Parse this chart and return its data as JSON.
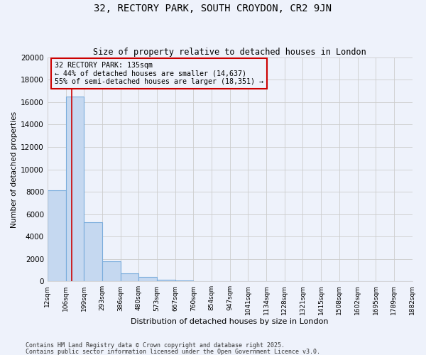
{
  "title": "32, RECTORY PARK, SOUTH CROYDON, CR2 9JN",
  "subtitle": "Size of property relative to detached houses in London",
  "xlabel": "Distribution of detached houses by size in London",
  "ylabel": "Number of detached properties",
  "property_size": 135,
  "annotation_line1": "32 RECTORY PARK: 135sqm",
  "annotation_line2": "← 44% of detached houses are smaller (14,637)",
  "annotation_line3": "55% of semi-detached houses are larger (18,351) →",
  "footnote1": "Contains HM Land Registry data © Crown copyright and database right 2025.",
  "footnote2": "Contains public sector information licensed under the Open Government Licence v3.0.",
  "bin_edges": [
    12,
    106,
    199,
    293,
    386,
    480,
    573,
    667,
    760,
    854,
    947,
    1041,
    1134,
    1228,
    1321,
    1415,
    1508,
    1602,
    1695,
    1789,
    1882
  ],
  "bar_heights": [
    8100,
    16500,
    5300,
    1800,
    700,
    380,
    160,
    70,
    25,
    10,
    5,
    2,
    1,
    1,
    0,
    0,
    0,
    0,
    0,
    0
  ],
  "bar_color": "#c5d8f0",
  "bar_edge_color": "#7aacdc",
  "red_line_color": "#cc0000",
  "annotation_box_color": "#cc0000",
  "background_color": "#eef2fb",
  "ylim": [
    0,
    20000
  ],
  "yticks": [
    0,
    2000,
    4000,
    6000,
    8000,
    10000,
    12000,
    14000,
    16000,
    18000,
    20000
  ],
  "grid_color": "#cccccc"
}
